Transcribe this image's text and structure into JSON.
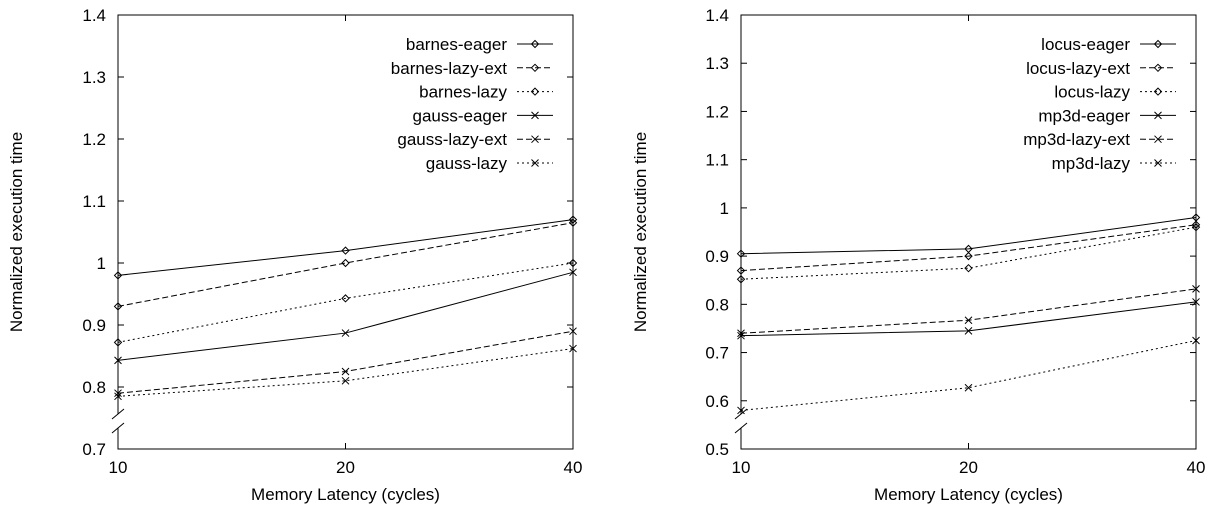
{
  "chart_data": [
    {
      "type": "line",
      "x": [
        10,
        20,
        40
      ],
      "x_ticks": [
        "10",
        "20",
        "40"
      ],
      "y_ticks": [
        "0.7",
        "0.8",
        "0.9",
        "1",
        "1.1",
        "1.2",
        "1.3",
        "1.4"
      ],
      "ylim": [
        0.7,
        1.4
      ],
      "xlabel": "Memory Latency (cycles)",
      "ylabel": "Normalized execution time",
      "axis_break": true,
      "legend_position": "top-right",
      "grid": false,
      "series": [
        {
          "name": "barnes-eager",
          "values": [
            0.98,
            1.02,
            1.07
          ],
          "marker": "diamond",
          "dash": "solid"
        },
        {
          "name": "barnes-lazy-ext",
          "values": [
            0.93,
            1.0,
            1.065
          ],
          "marker": "diamond",
          "dash": "dashed"
        },
        {
          "name": "barnes-lazy",
          "values": [
            0.872,
            0.943,
            1.0
          ],
          "marker": "diamond",
          "dash": "dotted"
        },
        {
          "name": "gauss-eager",
          "values": [
            0.843,
            0.887,
            0.985
          ],
          "marker": "cross",
          "dash": "solid"
        },
        {
          "name": "gauss-lazy-ext",
          "values": [
            0.79,
            0.825,
            0.89
          ],
          "marker": "cross",
          "dash": "dashed"
        },
        {
          "name": "gauss-lazy",
          "values": [
            0.785,
            0.81,
            0.862
          ],
          "marker": "cross",
          "dash": "dotted"
        }
      ]
    },
    {
      "type": "line",
      "x": [
        10,
        20,
        40
      ],
      "x_ticks": [
        "10",
        "20",
        "40"
      ],
      "y_ticks": [
        "0.5",
        "0.6",
        "0.7",
        "0.8",
        "0.9",
        "1",
        "1.1",
        "1.2",
        "1.3",
        "1.4"
      ],
      "ylim": [
        0.5,
        1.4
      ],
      "xlabel": "Memory Latency (cycles)",
      "ylabel": "Normalized execution time",
      "axis_break": true,
      "legend_position": "top-right",
      "grid": false,
      "series": [
        {
          "name": "locus-eager",
          "values": [
            0.905,
            0.915,
            0.98
          ],
          "marker": "diamond",
          "dash": "solid"
        },
        {
          "name": "locus-lazy-ext",
          "values": [
            0.87,
            0.9,
            0.965
          ],
          "marker": "diamond",
          "dash": "dashed"
        },
        {
          "name": "locus-lazy",
          "values": [
            0.852,
            0.875,
            0.96
          ],
          "marker": "diamond",
          "dash": "dotted"
        },
        {
          "name": "mp3d-eager",
          "values": [
            0.735,
            0.745,
            0.805
          ],
          "marker": "cross",
          "dash": "solid"
        },
        {
          "name": "mp3d-lazy-ext",
          "values": [
            0.74,
            0.767,
            0.832
          ],
          "marker": "cross",
          "dash": "dashed"
        },
        {
          "name": "mp3d-lazy",
          "values": [
            0.58,
            0.627,
            0.725
          ],
          "marker": "cross",
          "dash": "dotted"
        }
      ]
    }
  ]
}
